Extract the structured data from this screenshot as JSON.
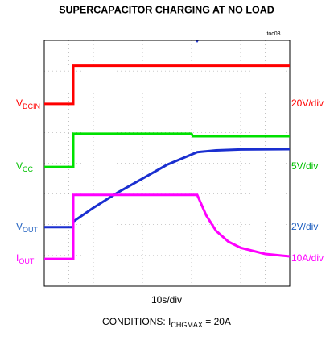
{
  "chart_data": {
    "type": "line",
    "title": "SUPERCAPACITOR CHARGING AT NO LOAD",
    "figure_id": "toc03",
    "x_scale": "10s/div",
    "conditions": [
      "CONDITIONS: I",
      "CHGMAX",
      " = 20A"
    ],
    "xlim": [
      0,
      10
    ],
    "ylim": [
      0,
      8
    ],
    "xticks": [
      0,
      1,
      2,
      3,
      4,
      5,
      6,
      7,
      8,
      9,
      10
    ],
    "yticks": [
      0,
      1,
      2,
      3,
      4,
      5,
      6,
      7,
      8
    ],
    "grid": true,
    "series": [
      {
        "label": "V",
        "label_sub": "DCIN",
        "scale": "20V/div",
        "color": "#ff0000",
        "label_color": "#ff0000",
        "label_y": 5.93,
        "x": [
          0,
          1.18,
          1.18,
          10
        ],
        "values": [
          5.93,
          5.93,
          7.17,
          7.17
        ]
      },
      {
        "label": "V",
        "label_sub": "CC",
        "scale": "5V/div",
        "color": "#00e000",
        "label_color": "#00c000",
        "label_y": 3.88,
        "x": [
          0,
          1.18,
          1.18,
          6.0,
          6.05,
          10
        ],
        "values": [
          3.88,
          3.88,
          4.96,
          4.96,
          4.88,
          4.88
        ]
      },
      {
        "label": "V",
        "label_sub": "OUT",
        "scale": "2V/div",
        "color": "#1a2fd0",
        "label_color": "#2060c0",
        "label_y": 1.92,
        "x": [
          0,
          1.18,
          1.18,
          2,
          3,
          4,
          5,
          6.23,
          7,
          8,
          10
        ],
        "values": [
          1.92,
          1.92,
          2.1,
          2.55,
          3.05,
          3.5,
          3.95,
          4.36,
          4.42,
          4.45,
          4.46
        ]
      },
      {
        "label": "I",
        "label_sub": "OUT",
        "scale": "10A/div",
        "color": "#ff00ff",
        "label_color": "#ff00ff",
        "label_y": 0.89,
        "x": [
          0,
          1.18,
          1.18,
          6.23,
          6.6,
          7,
          7.5,
          8,
          9,
          10
        ],
        "values": [
          0.89,
          0.89,
          2.97,
          2.97,
          2.3,
          1.8,
          1.45,
          1.25,
          1.05,
          0.97
        ]
      }
    ]
  }
}
